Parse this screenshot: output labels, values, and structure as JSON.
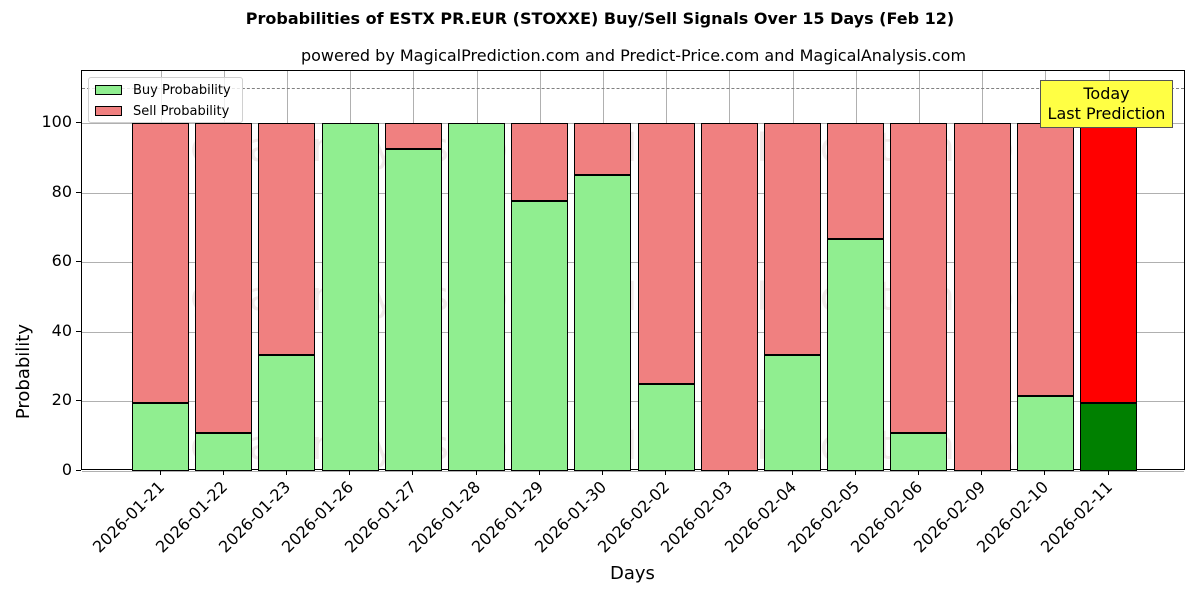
{
  "chart_data": {
    "type": "bar",
    "stacked": true,
    "title": "Probabilities of ESTX PR.EUR (STOXXE) Buy/Sell Signals Over 15 Days (Feb 12)",
    "subtitle": "powered by MagicalPrediction.com and Predict-Price.com and MagicalAnalysis.com",
    "xlabel": "Days",
    "ylabel": "Probability",
    "ylim": [
      0,
      115
    ],
    "yticks": [
      0,
      20,
      40,
      60,
      80,
      100
    ],
    "grid": true,
    "legend_position": "upper left",
    "categories": [
      "2026-01-21",
      "2026-01-22",
      "2026-01-23",
      "2026-01-26",
      "2026-01-27",
      "2026-01-28",
      "2026-01-29",
      "2026-01-30",
      "2026-02-02",
      "2026-02-03",
      "2026-02-04",
      "2026-02-05",
      "2026-02-06",
      "2026-02-09",
      "2026-02-10",
      "2026-02-11"
    ],
    "series": [
      {
        "name": "Buy Probability",
        "color": "#90ee90",
        "values": [
          19.6,
          10.9,
          33.3,
          100,
          92.5,
          100,
          77.5,
          85.0,
          25.0,
          0,
          33.3,
          66.7,
          10.9,
          0,
          21.6,
          19.6
        ]
      },
      {
        "name": "Sell Probability",
        "color": "#f08080",
        "values": [
          80.4,
          89.1,
          66.7,
          0,
          7.5,
          0,
          22.5,
          15.0,
          75.0,
          100,
          66.7,
          33.3,
          89.1,
          100,
          78.4,
          80.4
        ]
      }
    ],
    "highlight": {
      "index": 15,
      "buy_color": "#008000",
      "sell_color": "#ff0000"
    },
    "reference_line": {
      "y": 110,
      "style": "dashed",
      "color": "#808080"
    },
    "annotation": {
      "text_line1": "Today",
      "text_line2": "Last Prediction",
      "background": "#ffff44"
    },
    "watermarks": [
      "MagicalAnalysis.com",
      "MagicalPrediction.com"
    ]
  }
}
